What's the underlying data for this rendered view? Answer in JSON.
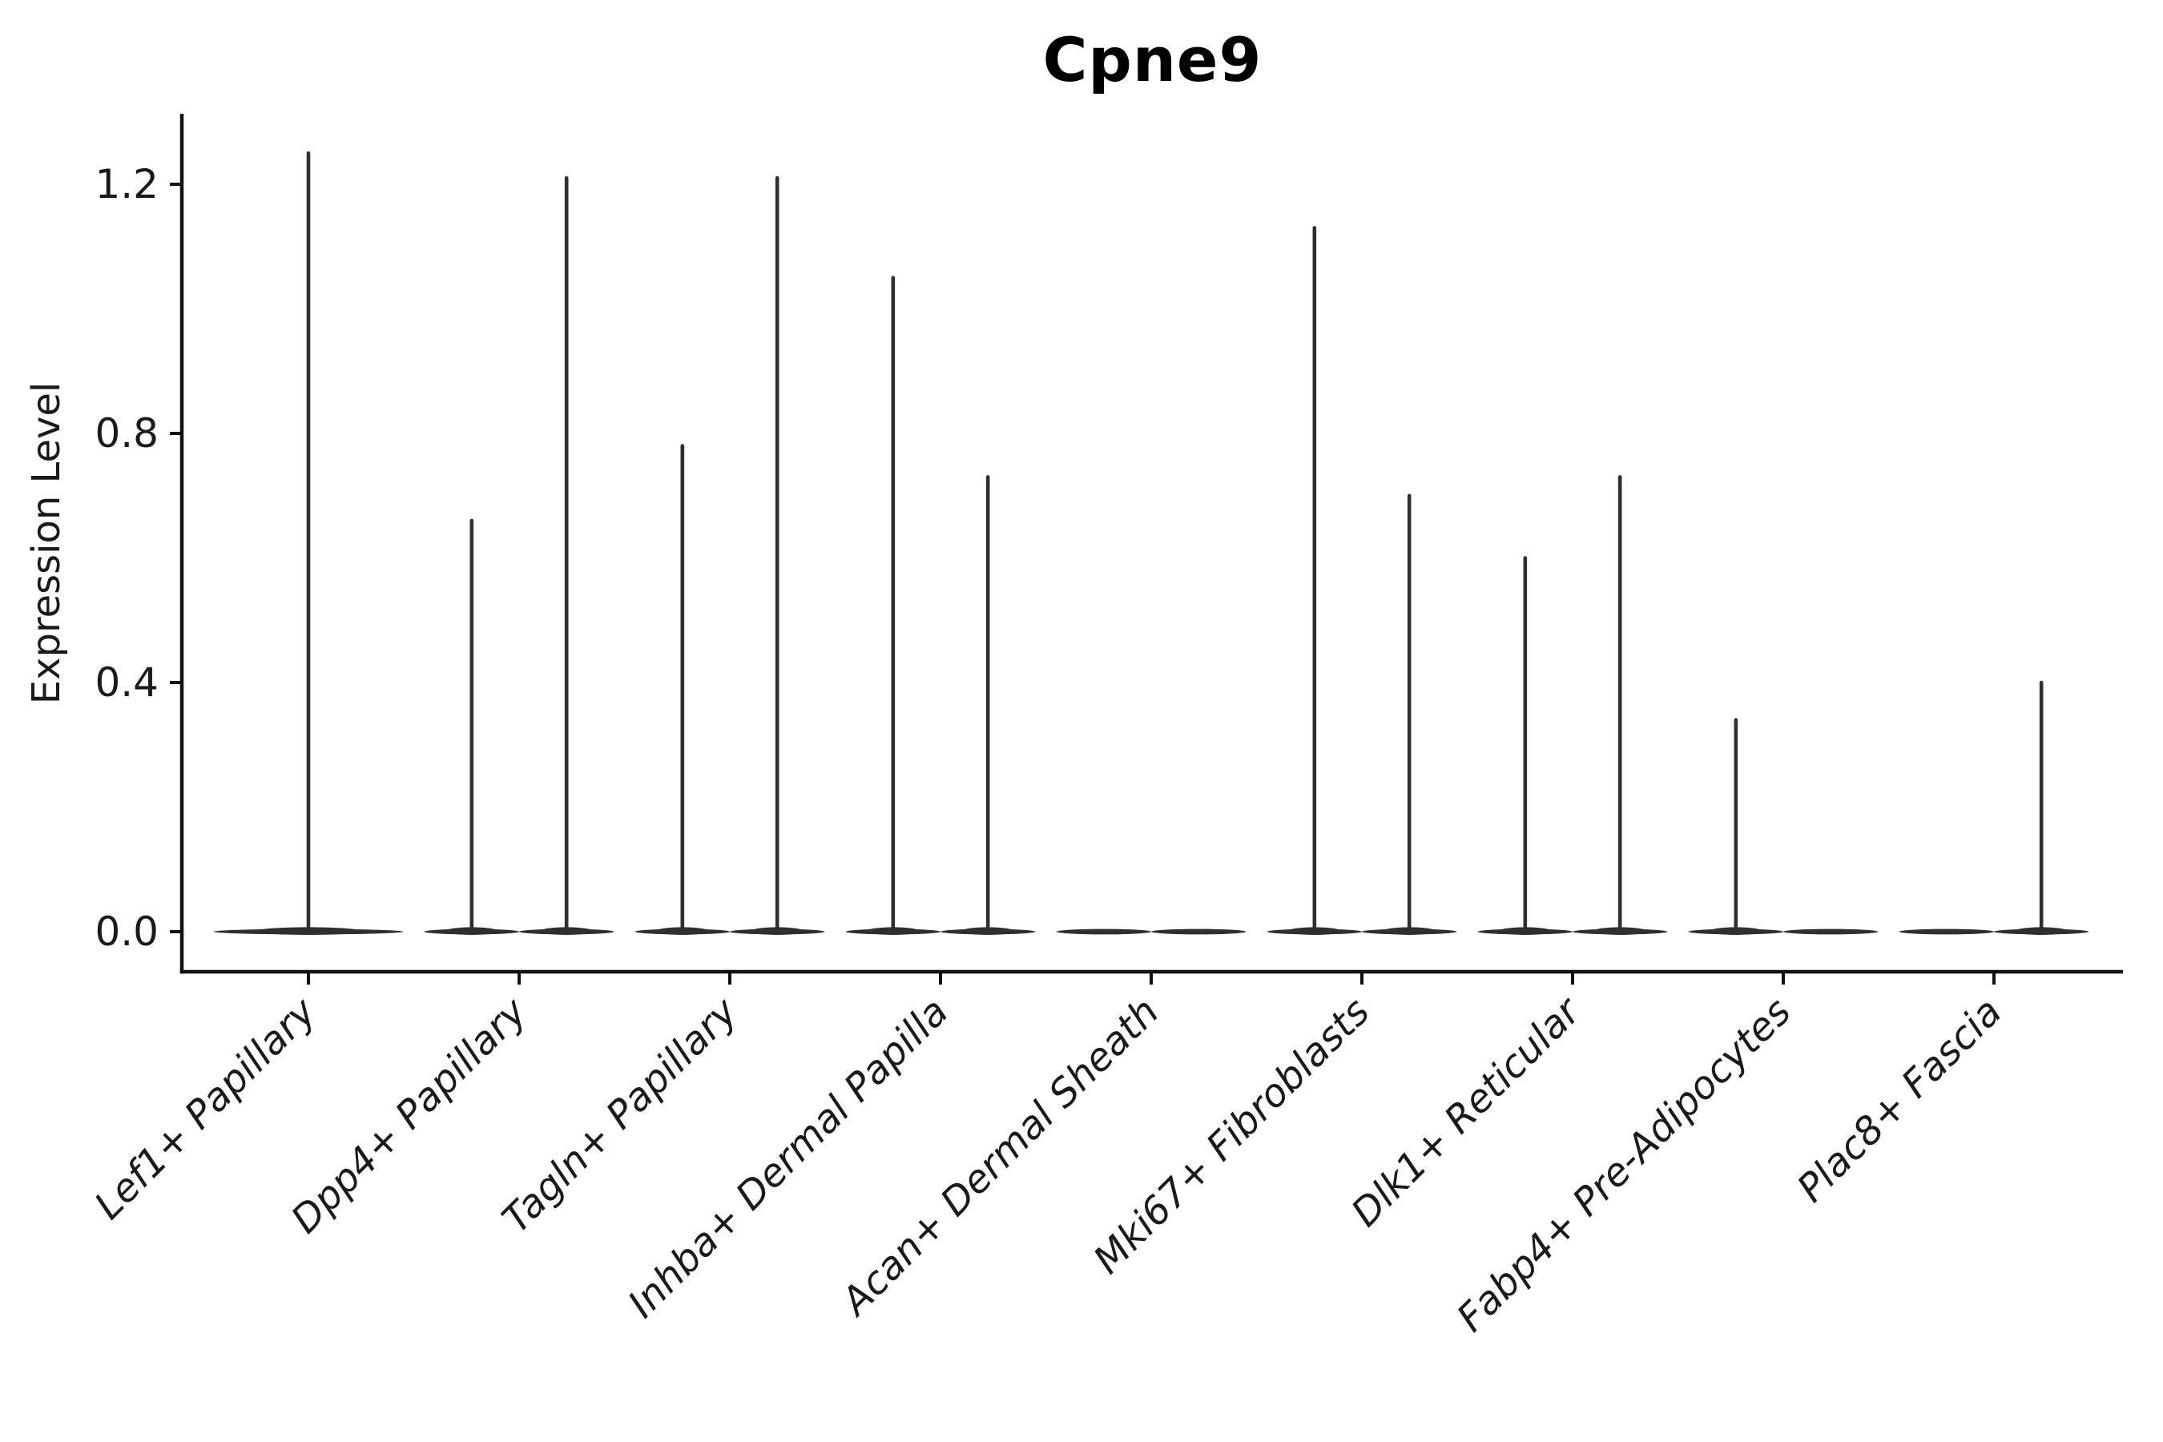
{
  "chart_data": {
    "type": "violin",
    "title": "Cpne9",
    "xlabel": "",
    "ylabel": "Expression Level",
    "ytick_labels": [
      "0.0",
      "0.4",
      "0.8",
      "1.2"
    ],
    "ytick_values": [
      0.0,
      0.4,
      0.8,
      1.2
    ],
    "ylim": [
      -0.067,
      1.313
    ],
    "grid": false,
    "legend": null,
    "baseline_value": 0.0,
    "categories": [
      {
        "label": "Lef1+ Papillary",
        "violins": [
          {
            "offset": 0.0,
            "width": 0.9,
            "max_expression": 1.25
          }
        ]
      },
      {
        "label": "Dpp4+ Papillary",
        "violins": [
          {
            "offset": -0.225,
            "width": 0.45,
            "max_expression": 0.66
          },
          {
            "offset": 0.225,
            "width": 0.45,
            "max_expression": 1.21
          }
        ]
      },
      {
        "label": "Tagln+ Papillary",
        "violins": [
          {
            "offset": -0.225,
            "width": 0.45,
            "max_expression": 0.78
          },
          {
            "offset": 0.225,
            "width": 0.45,
            "max_expression": 1.21
          }
        ]
      },
      {
        "label": "Inhba+ Dermal Papilla",
        "violins": [
          {
            "offset": -0.225,
            "width": 0.45,
            "max_expression": 1.05
          },
          {
            "offset": 0.225,
            "width": 0.45,
            "max_expression": 0.73
          }
        ]
      },
      {
        "label": "Acan+ Dermal Sheath",
        "violins": [
          {
            "offset": -0.225,
            "width": 0.45,
            "max_expression": 0.0
          },
          {
            "offset": 0.225,
            "width": 0.45,
            "max_expression": 0.0
          }
        ]
      },
      {
        "label": "Mki67+ Fibroblasts",
        "violins": [
          {
            "offset": -0.225,
            "width": 0.45,
            "max_expression": 1.13
          },
          {
            "offset": 0.225,
            "width": 0.45,
            "max_expression": 0.7
          }
        ]
      },
      {
        "label": "Dlk1+ Reticular",
        "violins": [
          {
            "offset": -0.225,
            "width": 0.45,
            "max_expression": 0.6
          },
          {
            "offset": 0.225,
            "width": 0.45,
            "max_expression": 0.73
          }
        ]
      },
      {
        "label": "Fabp4+ Pre-Adipocytes",
        "violins": [
          {
            "offset": -0.225,
            "width": 0.45,
            "max_expression": 0.34
          },
          {
            "offset": 0.225,
            "width": 0.45,
            "max_expression": 0.0
          }
        ]
      },
      {
        "label": "Plac8+ Fascia",
        "violins": [
          {
            "offset": -0.225,
            "width": 0.45,
            "max_expression": 0.0
          },
          {
            "offset": 0.225,
            "width": 0.45,
            "max_expression": 0.4
          }
        ]
      }
    ],
    "colors": {
      "violin": "#2f2f2f",
      "axis": "#111111",
      "text": "#1a1a1a",
      "background": "#ffffff"
    }
  }
}
